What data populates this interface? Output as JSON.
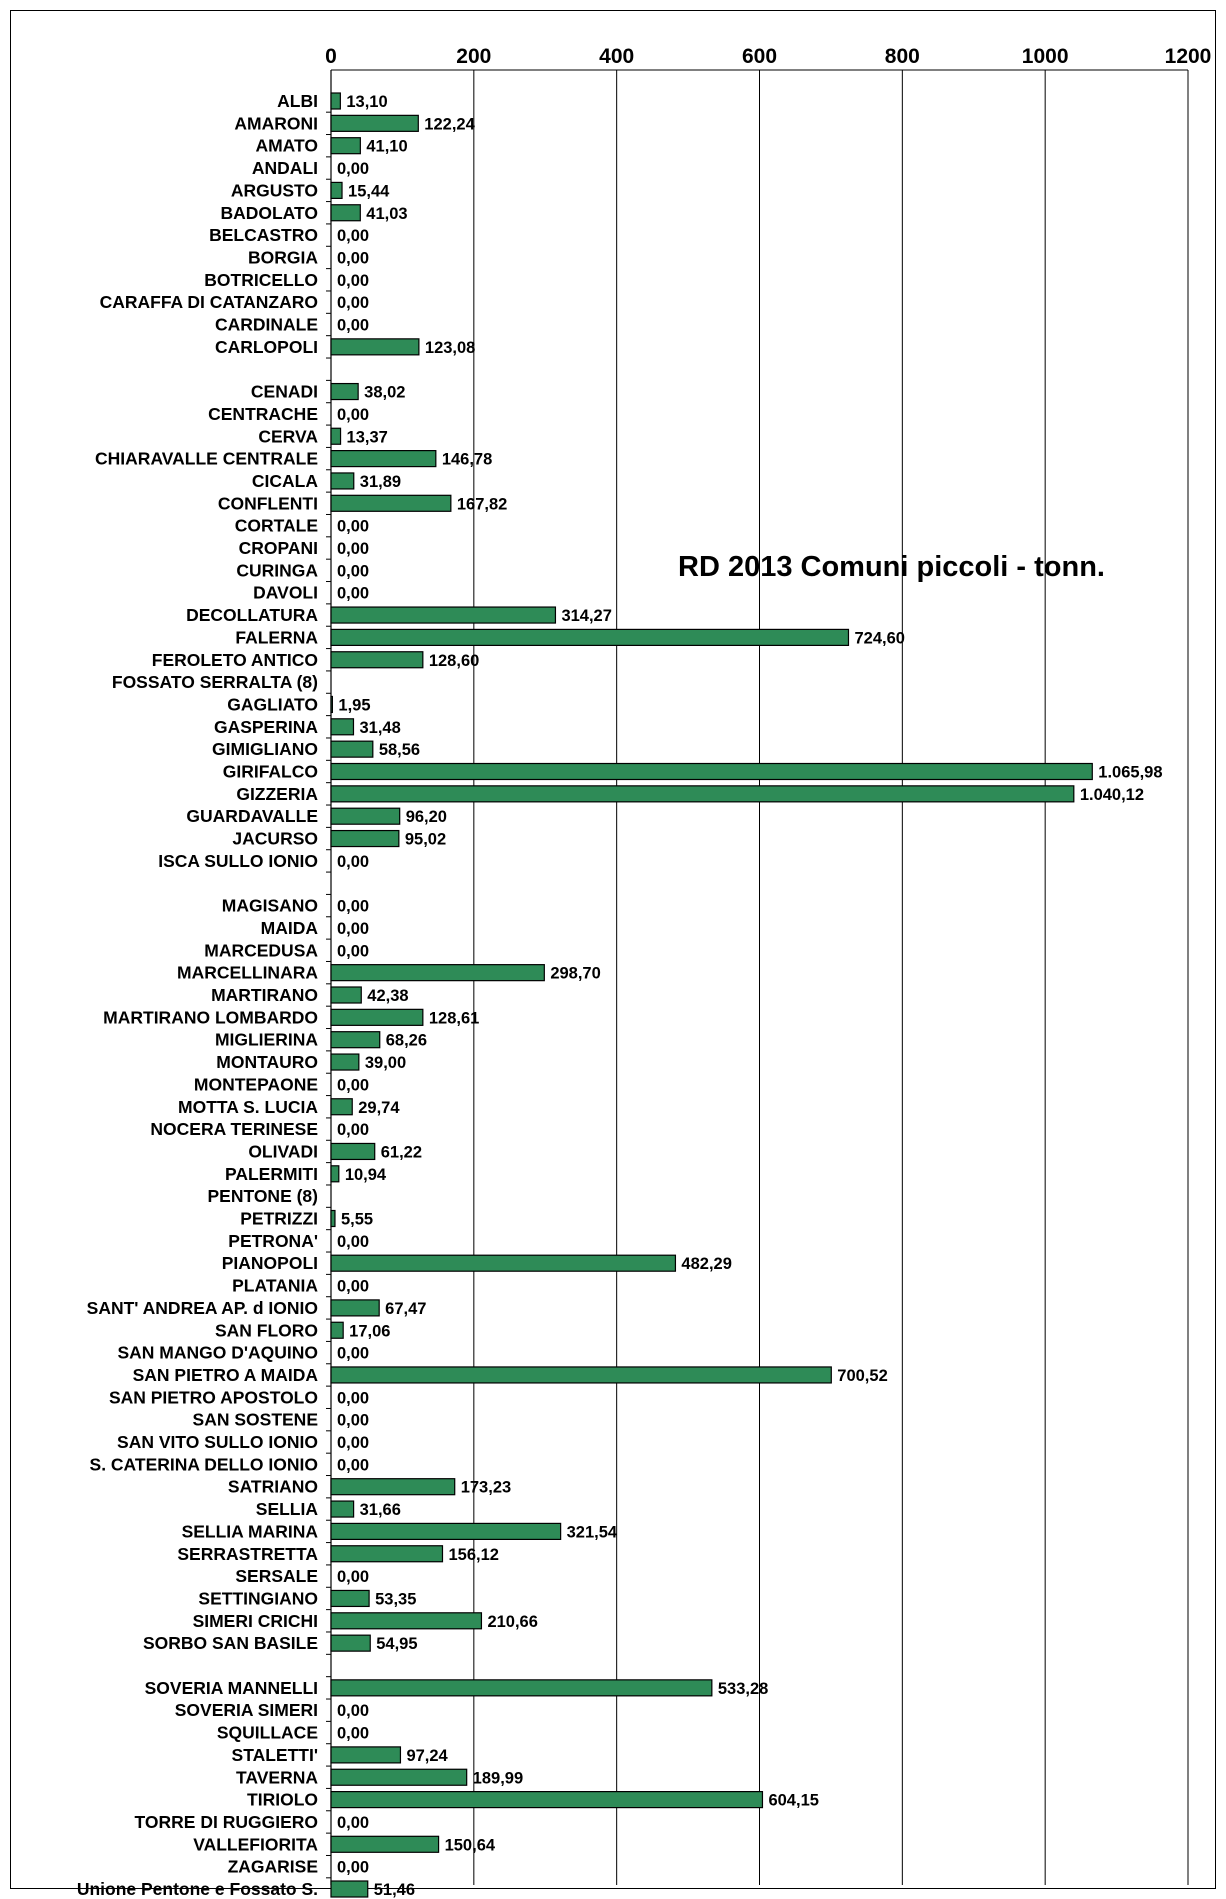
{
  "chart_data": {
    "type": "bar",
    "orientation": "horizontal",
    "title": "RD 2013 Comuni piccoli - tonn.",
    "xlim": [
      0,
      1200
    ],
    "xticks": [
      0,
      200,
      400,
      600,
      800,
      1000,
      1200
    ],
    "xtick_labels": [
      "0",
      "200",
      "400",
      "600",
      "800",
      "1000",
      "1200"
    ],
    "axis_position": "top",
    "grid": "vertical",
    "bar_color": "#2e8b57",
    "categories": [
      "ALBI",
      "AMARONI",
      "AMATO",
      "ANDALI",
      "ARGUSTO",
      "BADOLATO",
      "BELCASTRO",
      "BORGIA",
      "BOTRICELLO",
      "CARAFFA DI CATANZARO",
      "CARDINALE",
      "CARLOPOLI",
      "",
      "CENADI",
      "CENTRACHE",
      "CERVA",
      "CHIARAVALLE CENTRALE",
      "CICALA",
      "CONFLENTI",
      "CORTALE",
      "CROPANI",
      "CURINGA",
      "DAVOLI",
      "DECOLLATURA",
      "FALERNA",
      "FEROLETO ANTICO",
      "FOSSATO SERRALTA (8)",
      "GAGLIATO",
      "GASPERINA",
      "GIMIGLIANO",
      "GIRIFALCO",
      "GIZZERIA",
      "GUARDAVALLE",
      "JACURSO",
      "ISCA SULLO IONIO",
      "",
      "MAGISANO",
      "MAIDA",
      "MARCEDUSA",
      "MARCELLINARA",
      "MARTIRANO",
      "MARTIRANO LOMBARDO",
      "MIGLIERINA",
      "MONTAURO",
      "MONTEPAONE",
      "MOTTA S. LUCIA",
      "NOCERA TERINESE",
      "OLIVADI",
      "PALERMITI",
      "PENTONE (8)",
      "PETRIZZI",
      "PETRONA'",
      "PIANOPOLI",
      "PLATANIA",
      "SANT' ANDREA AP. d IONIO",
      "SAN FLORO",
      "SAN MANGO D'AQUINO",
      "SAN PIETRO A MAIDA",
      "SAN PIETRO APOSTOLO",
      "SAN SOSTENE",
      "SAN VITO SULLO IONIO",
      "S. CATERINA DELLO IONIO",
      "SATRIANO",
      "SELLIA",
      "SELLIA MARINA",
      "SERRASTRETTA",
      "SERSALE",
      "SETTINGIANO",
      "SIMERI CRICHI",
      "SORBO SAN BASILE",
      "",
      "SOVERIA MANNELLI",
      "SOVERIA SIMERI",
      "SQUILLACE",
      "STALETTI'",
      "TAVERNA",
      "TIRIOLO",
      "TORRE DI RUGGIERO",
      "VALLEFIORITA",
      "ZAGARISE",
      "Unione  Pentone e Fossato S."
    ],
    "values": [
      13.1,
      122.24,
      41.1,
      0.0,
      15.44,
      41.03,
      0.0,
      0.0,
      0.0,
      0.0,
      0.0,
      123.08,
      null,
      38.02,
      0.0,
      13.37,
      146.78,
      31.89,
      167.82,
      0.0,
      0.0,
      0.0,
      0.0,
      314.27,
      724.6,
      128.6,
      null,
      1.95,
      31.48,
      58.56,
      1065.98,
      1040.12,
      96.2,
      95.02,
      0.0,
      null,
      0.0,
      0.0,
      0.0,
      298.7,
      42.38,
      128.61,
      68.26,
      39.0,
      0.0,
      29.74,
      0.0,
      61.22,
      10.94,
      null,
      5.55,
      0.0,
      482.29,
      0.0,
      67.47,
      17.06,
      0.0,
      700.52,
      0.0,
      0.0,
      0.0,
      0.0,
      173.23,
      31.66,
      321.54,
      156.12,
      0.0,
      53.35,
      210.66,
      54.95,
      null,
      533.28,
      0.0,
      0.0,
      97.24,
      189.99,
      604.15,
      0.0,
      150.64,
      0.0,
      51.46
    ],
    "value_labels": [
      "13,10",
      "122,24",
      "41,10",
      "0,00",
      "15,44",
      "41,03",
      "0,00",
      "0,00",
      "0,00",
      "0,00",
      "0,00",
      "123,08",
      "",
      "38,02",
      "0,00",
      "13,37",
      "146,78",
      "31,89",
      "167,82",
      "0,00",
      "0,00",
      "0,00",
      "0,00",
      "314,27",
      "724,60",
      "128,60",
      "",
      "1,95",
      "31,48",
      "58,56",
      "1.065,98",
      "1.040,12",
      "96,20",
      "95,02",
      "0,00",
      "",
      "0,00",
      "0,00",
      "0,00",
      "298,70",
      "42,38",
      "128,61",
      "68,26",
      "39,00",
      "0,00",
      "29,74",
      "0,00",
      "61,22",
      "10,94",
      "",
      "5,55",
      "0,00",
      "482,29",
      "0,00",
      "67,47",
      "17,06",
      "0,00",
      "700,52",
      "0,00",
      "0,00",
      "0,00",
      "0,00",
      "173,23",
      "31,66",
      "321,54",
      "156,12",
      "0,00",
      "53,35",
      "210,66",
      "54,95",
      "",
      "533,28",
      "0,00",
      "0,00",
      "97,24",
      "189,99",
      "604,15",
      "0,00",
      "150,64",
      "0,00",
      "51,46"
    ]
  }
}
